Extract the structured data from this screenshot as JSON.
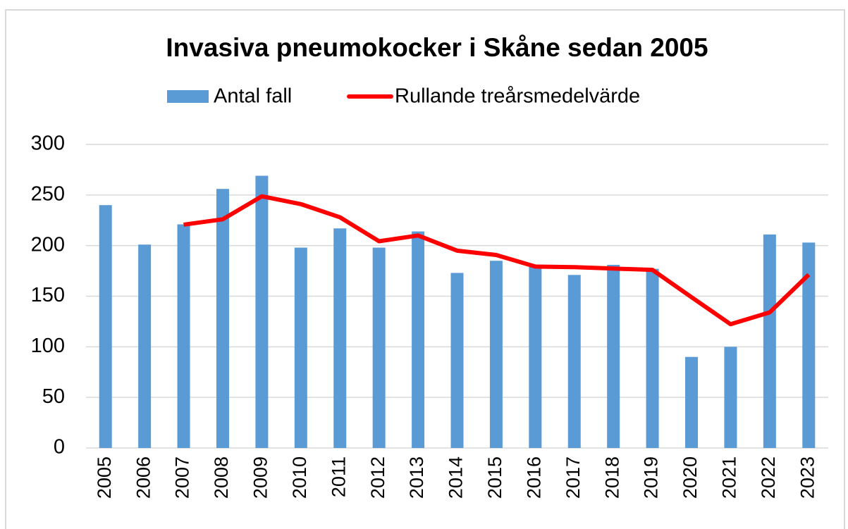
{
  "chart_data": {
    "type": "bar_line",
    "title": "Invasiva pneumokocker i Skåne sedan 2005",
    "categories": [
      "2005",
      "2006",
      "2007",
      "2008",
      "2009",
      "2010",
      "2011",
      "2012",
      "2013",
      "2014",
      "2015",
      "2016",
      "2017",
      "2018",
      "2019",
      "2020",
      "2021",
      "2022",
      "2023"
    ],
    "series": [
      {
        "name": "Antal fall",
        "type": "bar",
        "color": "#5b9bd5",
        "values": [
          240,
          201,
          221,
          256,
          269,
          198,
          217,
          198,
          214,
          173,
          185,
          180,
          171,
          181,
          177,
          90,
          100,
          211,
          203
        ]
      },
      {
        "name": "Rullande treårsmedelvärde",
        "type": "line",
        "color": "#ff0000",
        "values": [
          null,
          null,
          220.7,
          226,
          248.7,
          241,
          228,
          204.3,
          210,
          195,
          190.7,
          179.3,
          178.7,
          177.3,
          176,
          149,
          122.3,
          134,
          171.3
        ]
      }
    ],
    "ylim": [
      0,
      300
    ],
    "yticks": [
      0,
      50,
      100,
      150,
      200,
      250,
      300
    ],
    "grid": true,
    "legend": "top"
  }
}
